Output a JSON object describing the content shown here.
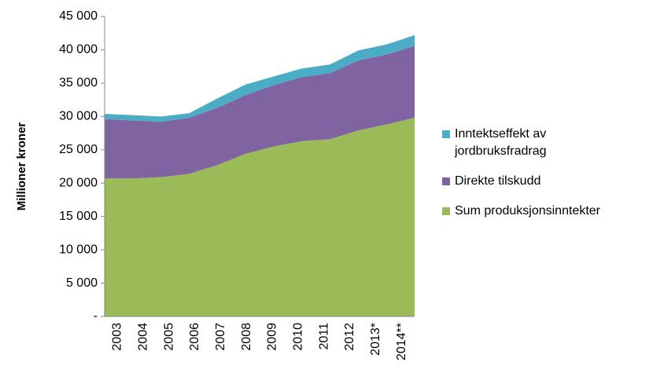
{
  "chart_data": {
    "type": "stacked_area",
    "y_label": "Millioner kroner",
    "categories": [
      "2003",
      "2004",
      "2005",
      "2006",
      "2007",
      "2008",
      "2009",
      "2010",
      "2011",
      "2012",
      "2013*",
      "2014**"
    ],
    "series": [
      {
        "name": "Sum produksjonsinntekter",
        "color": "#9bbb59",
        "values": [
          20700,
          20700,
          20900,
          21400,
          22700,
          24400,
          25500,
          26300,
          26600,
          27900,
          28800,
          29800
        ]
      },
      {
        "name": "Direkte tilskudd",
        "color": "#8064a2",
        "values": [
          8900,
          8700,
          8300,
          8400,
          8600,
          8800,
          9200,
          9600,
          9900,
          10500,
          10500,
          10800
        ]
      },
      {
        "name": "Inntektseffekt av jordbruksfradrag",
        "color": "#4bacc6",
        "values": [
          800,
          800,
          800,
          700,
          1400,
          1600,
          1300,
          1300,
          1300,
          1500,
          1500,
          1600
        ]
      }
    ],
    "ylim": [
      0,
      45000
    ],
    "yticks": [
      {
        "value": 0,
        "label": "-"
      },
      {
        "value": 5000,
        "label": "5 000"
      },
      {
        "value": 10000,
        "label": "10 000"
      },
      {
        "value": 15000,
        "label": "15 000"
      },
      {
        "value": 20000,
        "label": "20 000"
      },
      {
        "value": 25000,
        "label": "25 000"
      },
      {
        "value": 30000,
        "label": "30 000"
      },
      {
        "value": 35000,
        "label": "35 000"
      },
      {
        "value": 40000,
        "label": "40 000"
      },
      {
        "value": 45000,
        "label": "45 000"
      }
    ],
    "grid": false,
    "legend": "right"
  }
}
